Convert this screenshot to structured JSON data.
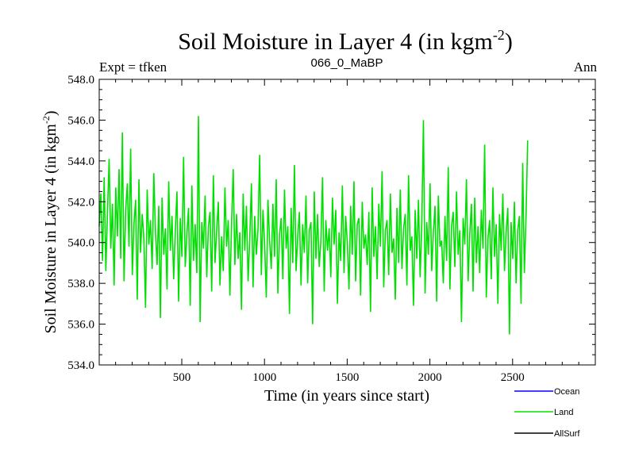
{
  "chart_data": {
    "type": "line",
    "title": "Soil Moisture in Layer 4 (in kgm",
    "title_sup": "-2",
    "title_close": ")",
    "subtitle_left": "Expt = tfken",
    "subtitle_center": "066_0_MaBP",
    "subtitle_right": "Ann",
    "xlabel": "Time (in years since start)",
    "ylabel": "Soil Moisture in Layer 4 (in kgm",
    "ylabel_sup": "-2",
    "ylabel_close": ")",
    "xlim": [
      1,
      3000
    ],
    "ylim": [
      534.0,
      548.0
    ],
    "xticks": [
      500,
      1000,
      1500,
      2000,
      2500
    ],
    "yticks": [
      534.0,
      536.0,
      538.0,
      540.0,
      542.0,
      544.0,
      546.0,
      548.0
    ],
    "ytick_labels": [
      "534.0",
      "536.0",
      "538.0",
      "540.0",
      "542.0",
      "544.0",
      "546.0",
      "548.0"
    ],
    "grid": false,
    "legend_position": "bottom-right, outside plot",
    "series": [
      {
        "name": "Land",
        "color": "#00e000",
        "x_start": 1,
        "x_step": 10,
        "values": [
          540.8,
          542.4,
          539.1,
          543.2,
          538.6,
          541.5,
          544.1,
          539.7,
          541.9,
          537.9,
          542.7,
          540.3,
          543.6,
          539.2,
          545.4,
          538.1,
          541.6,
          542.9,
          539.8,
          544.6,
          538.4,
          540.9,
          542.1,
          537.2,
          543.1,
          539.5,
          541.4,
          540.2,
          536.8,
          542.6,
          539.9,
          541.1,
          538.7,
          543.4,
          540.5,
          538.9,
          541.8,
          536.3,
          542.2,
          539.4,
          540.7,
          537.7,
          543.0,
          539.6,
          541.3,
          538.2,
          540.6,
          542.5,
          537.1,
          541.2,
          539.3,
          544.2,
          538.8,
          540.4,
          541.7,
          536.9,
          542.8,
          539.1,
          540.9,
          538.5,
          546.2,
          536.1,
          541.0,
          539.7,
          542.3,
          538.3,
          540.8,
          541.5,
          537.6,
          543.3,
          539.0,
          540.6,
          542.0,
          537.9,
          540.3,
          538.6,
          542.7,
          539.8,
          541.1,
          537.4,
          540.9,
          543.6,
          538.9,
          541.4,
          539.2,
          540.5,
          536.7,
          542.4,
          539.6,
          541.8,
          538.1,
          540.2,
          542.9,
          537.8,
          541.3,
          539.4,
          540.7,
          544.3,
          538.4,
          541.6,
          539.9,
          537.3,
          542.1,
          540.1,
          538.7,
          541.9,
          539.3,
          543.1,
          537.5,
          540.4,
          541.2,
          538.2,
          542.6,
          539.7,
          540.8,
          536.5,
          541.7,
          539.0,
          543.8,
          538.6,
          540.3,
          541.5,
          537.9,
          540.9,
          539.5,
          542.3,
          538.0,
          540.6,
          541.0,
          536.0,
          542.5,
          539.2,
          541.4,
          538.8,
          540.1,
          543.2,
          537.6,
          541.1,
          539.6,
          540.7,
          538.3,
          542.2,
          539.9,
          541.6,
          537.0,
          540.5,
          539.1,
          542.8,
          538.5,
          541.3,
          540.0,
          537.7,
          541.8,
          539.4,
          543.0,
          538.1,
          540.9,
          541.2,
          537.4,
          542.0,
          539.7,
          540.4,
          538.9,
          541.5,
          536.6,
          542.7,
          539.3,
          540.8,
          538.2,
          541.9,
          539.8,
          543.5,
          537.8,
          540.6,
          541.1,
          538.4,
          542.4,
          539.5,
          540.2,
          537.2,
          541.7,
          539.0,
          542.6,
          538.7,
          540.7,
          541.4,
          537.9,
          543.3,
          539.6,
          540.3,
          536.9,
          541.6,
          539.2,
          542.1,
          538.3,
          540.9,
          546.0,
          537.5,
          541.0,
          539.4,
          542.9,
          538.6,
          540.5,
          541.8,
          537.1,
          542.3,
          539.8,
          540.1,
          538.0,
          541.3,
          539.1,
          543.7,
          537.7,
          540.8,
          541.5,
          538.8,
          542.5,
          539.4,
          540.6,
          536.1,
          541.2,
          539.9,
          543.1,
          538.1,
          540.4,
          541.9,
          537.6,
          542.2,
          539.0,
          540.8,
          538.5,
          541.6,
          539.7,
          544.8,
          537.3,
          540.2,
          541.1,
          538.2,
          542.7,
          539.3,
          540.9,
          537.0,
          541.4,
          539.6,
          542.4,
          538.6,
          540.5,
          541.7,
          535.5,
          541.0,
          539.2,
          542.0,
          538.0,
          540.6,
          541.3,
          537.0,
          543.9,
          538.5,
          541.2,
          545.0
        ]
      },
      {
        "name": "Ocean",
        "color": "#0000ff",
        "values": []
      },
      {
        "name": "AllSurf",
        "color": "#000000",
        "values": []
      }
    ]
  },
  "legend": {
    "ocean_label": "Ocean",
    "land_label": "Land",
    "allsurf_label": "AllSurf"
  }
}
